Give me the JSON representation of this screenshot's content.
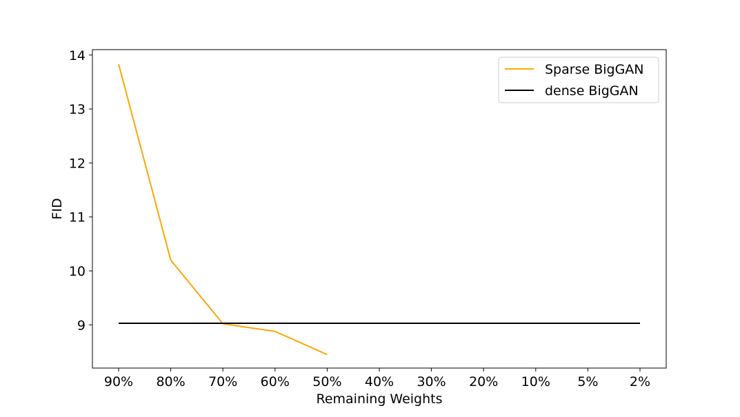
{
  "chart_data": {
    "type": "line",
    "title": "",
    "xlabel": "Remaining Weights",
    "ylabel": "FID",
    "categories": [
      "90%",
      "80%",
      "70%",
      "60%",
      "50%",
      "40%",
      "30%",
      "20%",
      "10%",
      "5%",
      "2%"
    ],
    "yticks": [
      9,
      10,
      11,
      12,
      13,
      14
    ],
    "ylim": [
      8.2,
      14.1
    ],
    "grid": false,
    "legend_position": "top-right",
    "series": [
      {
        "name": "Sparse BigGAN",
        "color": "#ffa500",
        "values": [
          13.83,
          10.2,
          9.02,
          8.88,
          8.45,
          null,
          null,
          null,
          null,
          null,
          null
        ]
      },
      {
        "name": "dense BigGAN",
        "color": "#000000",
        "values": [
          9.03,
          9.03,
          9.03,
          9.03,
          9.03,
          9.03,
          9.03,
          9.03,
          9.03,
          9.03,
          9.03
        ]
      }
    ]
  }
}
